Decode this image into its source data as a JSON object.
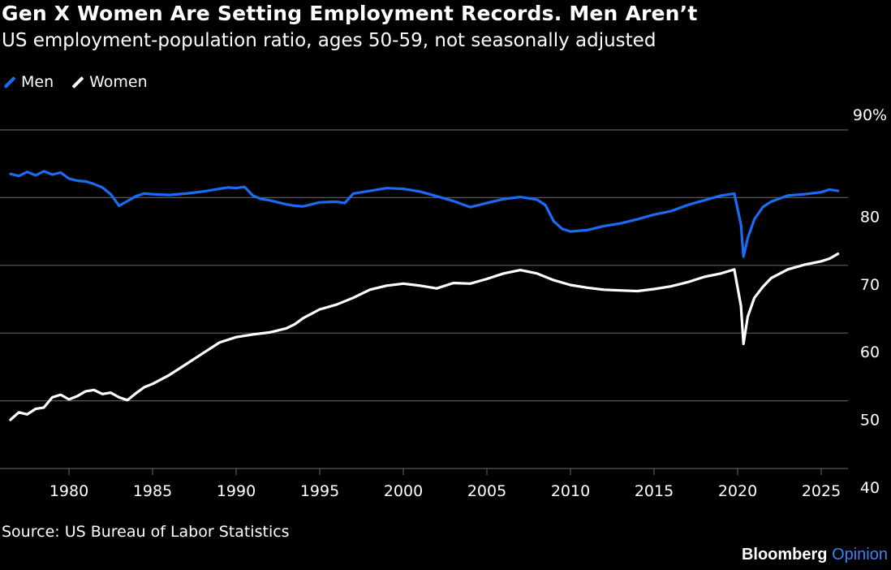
{
  "header": {
    "title": "Gen X Women Are Setting Employment Records. Men Aren’t",
    "subtitle": "US employment-population ratio, ages 50-59, not seasonally adjusted"
  },
  "footer": {
    "source": "Source: US Bureau of Labor Statistics",
    "brand_primary": "Bloomberg",
    "brand_secondary": "Opinion"
  },
  "colors": {
    "background": "#000000",
    "men": "#1a6cf5",
    "women": "#ffffff",
    "grid": "#5a5a5a"
  },
  "chart_data": {
    "type": "line",
    "title": "Gen X Women Are Setting Employment Records. Men Aren’t",
    "subtitle": "US employment-population ratio, ages 50-59, not seasonally adjusted",
    "xlabel": "",
    "ylabel": "",
    "xlim": [
      1976.5,
      2026.2
    ],
    "ylim": [
      40,
      90
    ],
    "y_unit_suffix_top_tick": "%",
    "y_axis_position": "right",
    "grid": "horizontal",
    "legend_position": "top-left",
    "x_ticks": [
      "1980",
      "1985",
      "1990",
      "1995",
      "2000",
      "2005",
      "2010",
      "2015",
      "2020",
      "2025"
    ],
    "y_ticks": [
      "40",
      "50",
      "60",
      "70",
      "80",
      "90%"
    ],
    "series": [
      {
        "name": "Men",
        "color": "#1a6cf5",
        "x": [
          1976.5,
          1977,
          1977.5,
          1978,
          1978.5,
          1979,
          1979.5,
          1980,
          1980.5,
          1981,
          1981.5,
          1982,
          1982.5,
          1983,
          1983.5,
          1984,
          1984.5,
          1985,
          1986,
          1987,
          1988,
          1989,
          1989.5,
          1990,
          1990.5,
          1991,
          1991.5,
          1992,
          1993,
          1993.5,
          1994,
          1995,
          1996,
          1996.5,
          1997,
          1998,
          1999,
          2000,
          2001,
          2002,
          2003,
          2004,
          2005,
          2006,
          2007,
          2008,
          2008.5,
          2009,
          2009.5,
          2010,
          2011,
          2012,
          2013,
          2014,
          2015,
          2016,
          2017,
          2018,
          2019,
          2019.8,
          2020.2,
          2020.35,
          2020.6,
          2021,
          2021.5,
          2022,
          2023,
          2024,
          2025,
          2025.5,
          2026
        ],
        "values": [
          83.5,
          83.2,
          83.8,
          83.3,
          83.9,
          83.4,
          83.7,
          82.8,
          82.5,
          82.4,
          82.0,
          81.5,
          80.5,
          78.8,
          79.5,
          80.2,
          80.6,
          80.5,
          80.4,
          80.6,
          80.9,
          81.3,
          81.5,
          81.4,
          81.6,
          80.3,
          79.8,
          79.6,
          79.0,
          78.8,
          78.7,
          79.3,
          79.4,
          79.2,
          80.6,
          81.0,
          81.4,
          81.3,
          80.9,
          80.2,
          79.5,
          78.6,
          79.2,
          79.8,
          80.1,
          79.7,
          78.9,
          76.5,
          75.4,
          75.0,
          75.2,
          75.8,
          76.2,
          76.8,
          77.5,
          78.0,
          78.9,
          79.6,
          80.3,
          80.6,
          76.0,
          71.3,
          74.0,
          76.8,
          78.6,
          79.4,
          80.3,
          80.5,
          80.8,
          81.2,
          81.0
        ]
      },
      {
        "name": "Women",
        "color": "#ffffff",
        "x": [
          1976.5,
          1977,
          1977.5,
          1978,
          1978.5,
          1979,
          1979.5,
          1980,
          1980.5,
          1981,
          1981.5,
          1982,
          1982.5,
          1983,
          1983.5,
          1984,
          1984.5,
          1985,
          1986,
          1987,
          1988,
          1989,
          1990,
          1991,
          1992,
          1993,
          1993.5,
          1994,
          1995,
          1996,
          1997,
          1998,
          1999,
          2000,
          2001,
          2002,
          2003,
          2004,
          2005,
          2006,
          2007,
          2008,
          2009,
          2010,
          2011,
          2012,
          2013,
          2014,
          2015,
          2016,
          2017,
          2018,
          2019,
          2019.8,
          2020.2,
          2020.35,
          2020.6,
          2021,
          2021.5,
          2022,
          2023,
          2024,
          2025,
          2025.5,
          2026
        ],
        "values": [
          47.2,
          48.3,
          48.0,
          48.8,
          49.0,
          50.5,
          50.9,
          50.2,
          50.7,
          51.4,
          51.6,
          51.0,
          51.2,
          50.5,
          50.1,
          51.1,
          52.0,
          52.5,
          53.8,
          55.4,
          57.0,
          58.6,
          59.4,
          59.8,
          60.1,
          60.7,
          61.3,
          62.2,
          63.5,
          64.2,
          65.2,
          66.4,
          67.0,
          67.3,
          67.0,
          66.6,
          67.4,
          67.3,
          68.0,
          68.8,
          69.3,
          68.8,
          67.8,
          67.1,
          66.7,
          66.4,
          66.3,
          66.2,
          66.5,
          66.9,
          67.5,
          68.3,
          68.8,
          69.4,
          64.0,
          58.4,
          62.4,
          65.2,
          66.8,
          68.1,
          69.4,
          70.1,
          70.6,
          71.0,
          71.7
        ]
      }
    ]
  }
}
